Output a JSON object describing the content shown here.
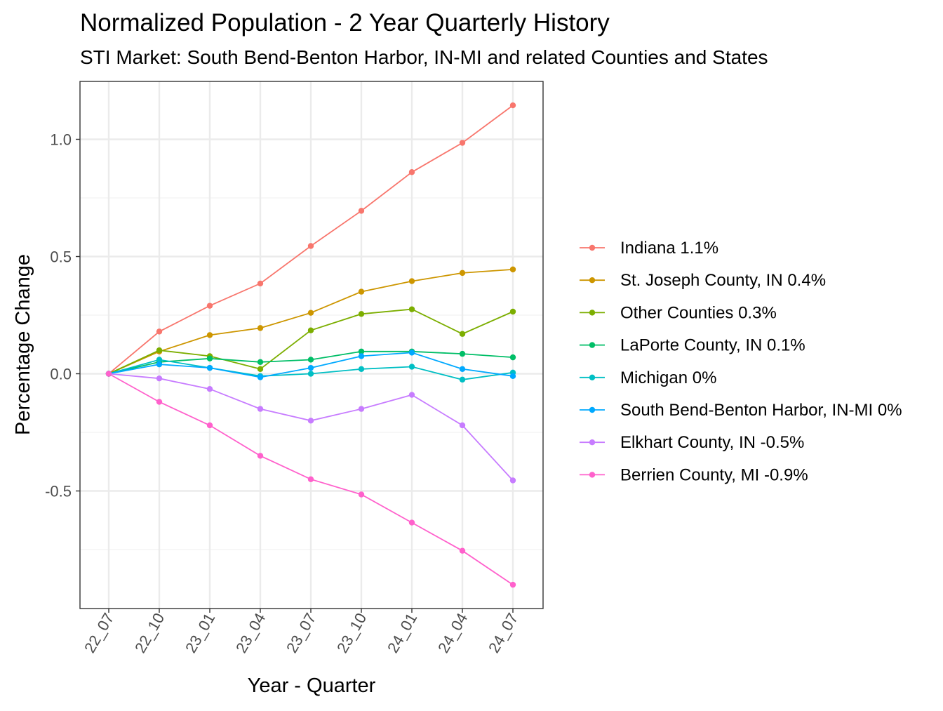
{
  "chart_data": {
    "type": "line",
    "title": "Normalized Population - 2 Year Quarterly History",
    "subtitle": "STI Market: South Bend-Benton Harbor, IN-MI and related Counties and States",
    "xlabel": "Year - Quarter",
    "ylabel": "Percentage Change",
    "x": [
      "22_07",
      "22_10",
      "23_01",
      "23_04",
      "23_07",
      "23_10",
      "24_01",
      "24_04",
      "24_07"
    ],
    "ylim": [
      -1.0,
      1.2
    ],
    "yticks": [
      -0.5,
      0.0,
      0.5,
      1.0
    ],
    "ytick_labels": [
      "-0.5",
      "0.0",
      "0.5",
      "1.0"
    ],
    "grid": true,
    "legend_position": "right",
    "series": [
      {
        "name": "Indiana 1.1%",
        "color": "#F8766D",
        "values": [
          0,
          0.18,
          0.29,
          0.385,
          0.545,
          0.695,
          0.86,
          0.985,
          1.145
        ]
      },
      {
        "name": "St. Joseph County, IN 0.4%",
        "color": "#CD9600",
        "values": [
          0,
          0.095,
          0.165,
          0.195,
          0.26,
          0.35,
          0.395,
          0.43,
          0.445
        ]
      },
      {
        "name": "Other Counties 0.3%",
        "color": "#7CAE00",
        "values": [
          0,
          0.1,
          0.075,
          0.02,
          0.185,
          0.255,
          0.275,
          0.17,
          0.265
        ]
      },
      {
        "name": "LaPorte County, IN 0.1%",
        "color": "#00BE67",
        "values": [
          0,
          0.05,
          0.065,
          0.05,
          0.06,
          0.095,
          0.095,
          0.085,
          0.07
        ]
      },
      {
        "name": "Michigan 0%",
        "color": "#00BFC4",
        "values": [
          0,
          0.06,
          0.025,
          -0.01,
          0.0,
          0.02,
          0.03,
          -0.025,
          0.005
        ]
      },
      {
        "name": "South Bend-Benton Harbor, IN-MI 0%",
        "color": "#00A9FF",
        "values": [
          0,
          0.04,
          0.025,
          -0.015,
          0.025,
          0.075,
          0.09,
          0.02,
          -0.01
        ]
      },
      {
        "name": "Elkhart County, IN -0.5%",
        "color": "#C77CFF",
        "values": [
          0,
          -0.02,
          -0.065,
          -0.15,
          -0.2,
          -0.15,
          -0.09,
          -0.22,
          -0.455
        ]
      },
      {
        "name": "Berrien County, MI -0.9%",
        "color": "#FF61CC",
        "values": [
          0,
          -0.12,
          -0.22,
          -0.35,
          -0.45,
          -0.515,
          -0.635,
          -0.755,
          -0.9
        ]
      }
    ]
  }
}
